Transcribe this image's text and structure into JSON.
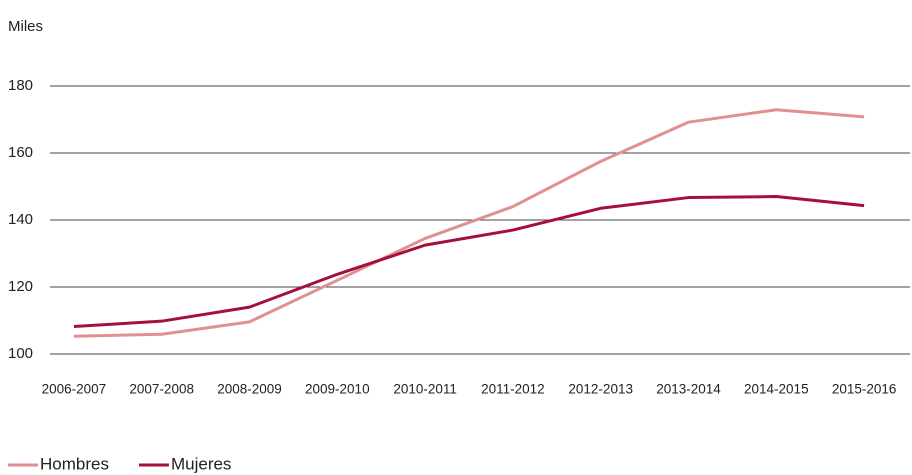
{
  "chart_data": {
    "type": "line",
    "y_axis_label": "Miles",
    "categories": [
      "2006-2007",
      "2007-2008",
      "2008-2009",
      "2009-2010",
      "2010-2011",
      "2011-2012",
      "2012-2013",
      "2013-2014",
      "2014-2015",
      "2015-2016"
    ],
    "series": [
      {
        "name": "Hombres",
        "color": "#e0918f",
        "values": [
          105.3,
          105.9,
          109.6,
          122,
          134.5,
          144,
          157.5,
          169.2,
          172.9,
          170.8
        ]
      },
      {
        "name": "Mujeres",
        "color": "#a50f3c",
        "values": [
          108.2,
          109.8,
          114,
          123.8,
          132.5,
          137,
          143.5,
          146.7,
          147,
          144.3
        ]
      }
    ],
    "ylim": [
      100,
      180
    ],
    "yticks": [
      100,
      120,
      140,
      160,
      180
    ],
    "grid": true
  }
}
